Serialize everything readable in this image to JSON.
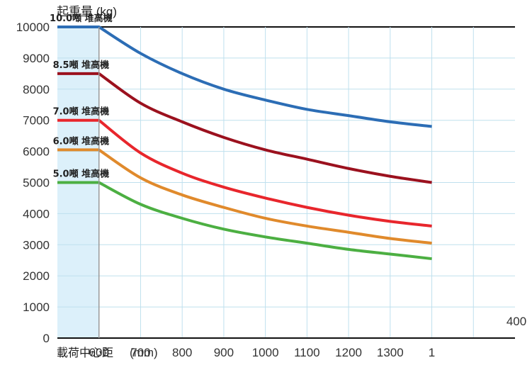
{
  "chart_data": {
    "type": "line",
    "ylabel": "起重量 (kg)",
    "xlabel_main": "載荷中心距",
    "xlabel_unit": "(mm)",
    "xlim": [
      500,
      1600
    ],
    "ylim": [
      0,
      10000
    ],
    "y_ticks": [
      "0",
      "1000",
      "2000",
      "3000",
      "4000",
      "5000",
      "6000",
      "7000",
      "8000",
      "9000",
      "10000"
    ],
    "x_ticks": [
      "600",
      "700",
      "800",
      "900",
      "1000",
      "1100",
      "1200",
      "1300",
      "1"
    ],
    "x_tick_overflow": "400",
    "grid": true,
    "shaded_region": [
      500,
      600
    ],
    "colors": {
      "shade": "#dcf0fa",
      "grid": "#bfe0ee",
      "axis": "#111111"
    },
    "series": [
      {
        "name": "10.0噸 堆高機",
        "color": "#2c6db5",
        "x": [
          500,
          600,
          700,
          800,
          900,
          1000,
          1100,
          1200,
          1300,
          1400
        ],
        "values": [
          10000,
          10000,
          9150,
          8500,
          8000,
          7650,
          7350,
          7150,
          6950,
          6800
        ]
      },
      {
        "name": "8.5噸 堆高機",
        "color": "#9b111e",
        "x": [
          500,
          600,
          700,
          800,
          900,
          1000,
          1100,
          1200,
          1300,
          1400
        ],
        "values": [
          8500,
          8500,
          7550,
          6950,
          6450,
          6050,
          5750,
          5450,
          5200,
          5000
        ]
      },
      {
        "name": "7.0噸 堆高機",
        "color": "#e8262c",
        "x": [
          500,
          600,
          700,
          800,
          900,
          1000,
          1100,
          1200,
          1300,
          1400
        ],
        "values": [
          7000,
          7000,
          5950,
          5300,
          4850,
          4500,
          4200,
          3950,
          3750,
          3600
        ]
      },
      {
        "name": "6.0噸 堆高機",
        "color": "#e08a2c",
        "x": [
          500,
          600,
          700,
          800,
          900,
          1000,
          1100,
          1200,
          1300,
          1400
        ],
        "values": [
          6050,
          6050,
          5150,
          4600,
          4200,
          3850,
          3600,
          3400,
          3200,
          3050
        ]
      },
      {
        "name": "5.0噸 堆高機",
        "color": "#4caf42",
        "x": [
          500,
          600,
          700,
          800,
          900,
          1000,
          1100,
          1200,
          1300,
          1400
        ],
        "values": [
          5000,
          5000,
          4300,
          3850,
          3500,
          3250,
          3050,
          2850,
          2700,
          2550
        ]
      }
    ]
  }
}
